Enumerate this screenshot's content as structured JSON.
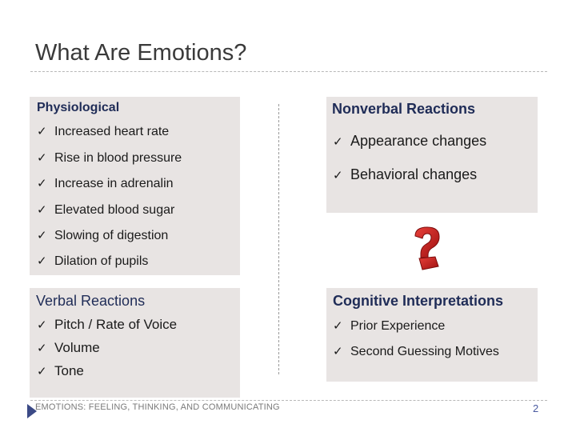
{
  "slide": {
    "title": "What Are Emotions?",
    "footer": "EMOTIONS: FEELING, THINKING, AND COMMUNICATING",
    "page_number": "2"
  },
  "physiological": {
    "heading": "Physiological",
    "items": [
      "Increased heart rate",
      "Rise in blood pressure",
      "Increase in adrenalin",
      "Elevated blood sugar",
      "Slowing of digestion",
      "Dilation of pupils"
    ]
  },
  "nonverbal": {
    "heading": "Nonverbal Reactions",
    "items": [
      "Appearance changes",
      "Behavioral changes"
    ]
  },
  "verbal": {
    "heading": "Verbal Reactions",
    "items": [
      "Pitch / Rate of Voice",
      "Volume",
      "Tone"
    ]
  },
  "cognitive": {
    "heading": "Cognitive Interpretations",
    "items": [
      "Prior Experience",
      "Second Guessing Motives"
    ]
  },
  "icons": {
    "check": "checkmark-icon",
    "decoration": "question-mark-icon",
    "footer": "arrow-icon"
  },
  "colors": {
    "panel": "#e8e4e3",
    "heading": "#1f2c57",
    "question_mark": "#c41a1a",
    "footer_accent": "#3b4a86"
  }
}
